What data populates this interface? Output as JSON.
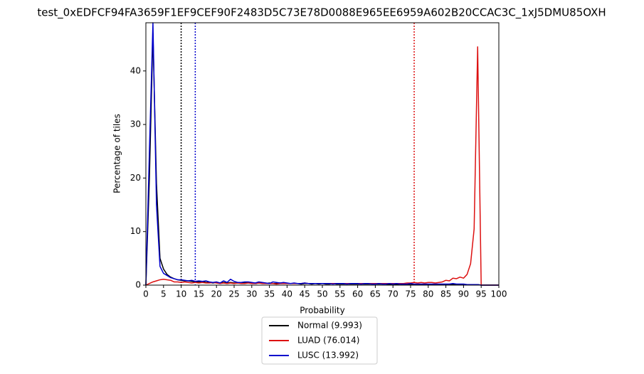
{
  "chart_data": {
    "type": "line",
    "title": "test_0xEDFCF94FA3659F1EF9CEF90F2483D5C73E78D0088E965EE6959A602B20CCAC3C_1xJ5DMU85OXH",
    "x_label": "Probability",
    "y_label": "Percentage of tiles",
    "x": [
      0,
      1,
      2,
      3,
      4,
      5,
      6,
      7,
      8,
      9,
      10,
      11,
      12,
      13,
      14,
      15,
      16,
      17,
      18,
      19,
      20,
      21,
      22,
      23,
      24,
      25,
      26,
      27,
      28,
      29,
      30,
      31,
      32,
      33,
      34,
      35,
      36,
      37,
      38,
      39,
      40,
      41,
      42,
      43,
      44,
      45,
      46,
      47,
      48,
      49,
      50,
      51,
      52,
      53,
      54,
      55,
      56,
      57,
      58,
      59,
      60,
      61,
      62,
      63,
      64,
      65,
      66,
      67,
      68,
      69,
      70,
      71,
      72,
      73,
      74,
      75,
      76,
      77,
      78,
      79,
      80,
      81,
      82,
      83,
      84,
      85,
      86,
      87,
      88,
      89,
      90,
      91,
      92,
      93,
      94,
      95,
      96,
      97,
      98,
      99,
      100
    ],
    "series": [
      {
        "name": "Normal (9.993)",
        "color": "#000000",
        "threshold": 9.993,
        "values": [
          0,
          20,
          47,
          19,
          5,
          3,
          2,
          1.5,
          1.2,
          1,
          0.9,
          0.8,
          0.8,
          0.7,
          0.6,
          0.6,
          0.7,
          0.5,
          0.5,
          0.4,
          0.5,
          0.4,
          0.5,
          0.4,
          0.5,
          0.4,
          0.4,
          0.5,
          0.4,
          0.5,
          0.4,
          0.3,
          0.4,
          0.4,
          0.3,
          0.4,
          0.3,
          0.3,
          0.4,
          0.3,
          0.3,
          0.3,
          0.3,
          0.3,
          0.2,
          0.3,
          0.3,
          0.2,
          0.3,
          0.2,
          0.3,
          0.2,
          0.2,
          0.3,
          0.2,
          0.2,
          0.2,
          0.2,
          0.2,
          0.2,
          0.2,
          0.2,
          0.2,
          0.2,
          0.2,
          0.2,
          0.2,
          0.2,
          0.2,
          0.1,
          0.2,
          0.1,
          0.2,
          0.1,
          0.1,
          0.2,
          0.1,
          0.1,
          0.1,
          0.1,
          0.1,
          0.1,
          0.1,
          0.1,
          0.1,
          0.1,
          0.1,
          0.1,
          0.1,
          0.1,
          0.1,
          0.1,
          0.1,
          0.1,
          0.1,
          0,
          0,
          0,
          0,
          0,
          0
        ]
      },
      {
        "name": "LUAD (76.014)",
        "color": "#dd1111",
        "threshold": 76.014,
        "values": [
          0,
          0.3,
          0.6,
          0.8,
          1,
          1.1,
          1,
          0.9,
          0.6,
          0.6,
          0.5,
          0.6,
          0.5,
          0.4,
          0.5,
          0.4,
          0.5,
          0.4,
          0.4,
          0.5,
          0.4,
          0.3,
          0.4,
          0.3,
          0.4,
          0.3,
          0.4,
          0.3,
          0.3,
          0.4,
          0.3,
          0.3,
          0.4,
          0.3,
          0.3,
          0.3,
          0.3,
          0.2,
          0.3,
          0.3,
          0.3,
          0.3,
          0.3,
          0.3,
          0.3,
          0.4,
          0.3,
          0.3,
          0.3,
          0.3,
          0.3,
          0.3,
          0.3,
          0.3,
          0.3,
          0.3,
          0.3,
          0.3,
          0.3,
          0.3,
          0.3,
          0.3,
          0.3,
          0.3,
          0.3,
          0.3,
          0.3,
          0.3,
          0.3,
          0.3,
          0.3,
          0.3,
          0.3,
          0.3,
          0.4,
          0.4,
          0.5,
          0.4,
          0.5,
          0.4,
          0.5,
          0.5,
          0.4,
          0.5,
          0.6,
          0.9,
          0.8,
          1.3,
          1.2,
          1.5,
          1.3,
          2,
          4,
          10.5,
          44.5,
          0,
          0,
          0,
          0,
          0,
          0
        ]
      },
      {
        "name": "LUSC (13.992)",
        "color": "#0000cc",
        "threshold": 13.992,
        "values": [
          0,
          25,
          49,
          15,
          3.5,
          2.2,
          1.8,
          1.4,
          1.2,
          1,
          1,
          0.9,
          0.8,
          0.9,
          0.7,
          0.8,
          0.7,
          0.8,
          0.6,
          0.5,
          0.6,
          0.4,
          0.8,
          0.5,
          1.1,
          0.7,
          0.5,
          0.5,
          0.6,
          0.6,
          0.5,
          0.4,
          0.6,
          0.5,
          0.4,
          0.3,
          0.6,
          0.5,
          0.4,
          0.5,
          0.4,
          0.3,
          0.4,
          0.3,
          0.3,
          0.4,
          0.3,
          0.3,
          0.3,
          0.3,
          0.3,
          0.3,
          0.3,
          0.2,
          0.3,
          0.3,
          0.3,
          0.2,
          0.3,
          0.3,
          0.3,
          0.2,
          0.3,
          0.3,
          0.2,
          0.2,
          0.3,
          0.2,
          0.2,
          0.3,
          0.2,
          0.3,
          0.2,
          0.2,
          0.2,
          0.3,
          0.2,
          0.2,
          0.2,
          0.2,
          0.2,
          0.2,
          0.2,
          0.2,
          0.2,
          0.2,
          0.2,
          0.3,
          0.2,
          0.2,
          0.2,
          0.1,
          0.1,
          0.1,
          0.1,
          0,
          0,
          0,
          0,
          0,
          0
        ]
      }
    ],
    "xlim": [
      0,
      100
    ],
    "xticks": [
      0,
      5,
      10,
      15,
      20,
      25,
      30,
      35,
      40,
      45,
      50,
      55,
      60,
      65,
      70,
      75,
      80,
      85,
      90,
      95,
      100
    ],
    "ylim": [
      0,
      49
    ],
    "yticks": [
      0,
      10,
      20,
      30,
      40
    ],
    "grid": false,
    "legend": "below"
  }
}
